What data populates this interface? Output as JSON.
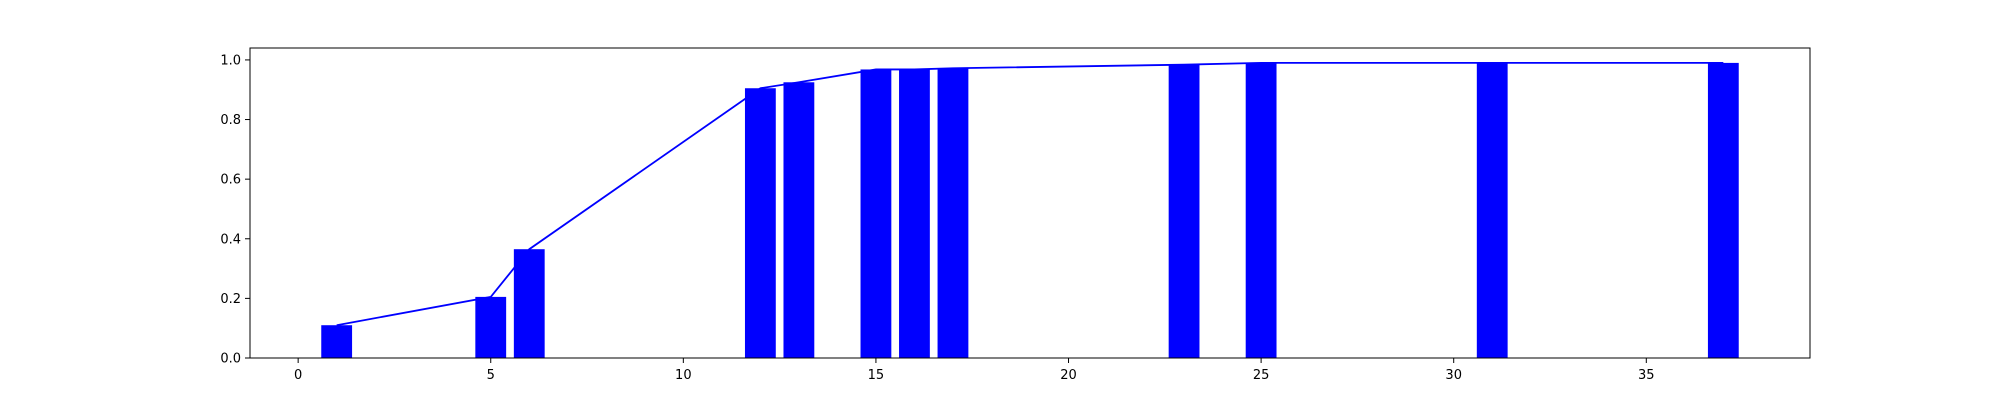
{
  "chart_data": {
    "type": "bar",
    "title": "",
    "xlabel": "",
    "ylabel": "",
    "xlim": [
      -1.25,
      39.25
    ],
    "ylim": [
      0,
      1.04
    ],
    "xticks": [
      0,
      5,
      10,
      15,
      20,
      25,
      30,
      35
    ],
    "yticks": [
      0.0,
      0.2,
      0.4,
      0.6,
      0.8,
      1.0
    ],
    "xtick_labels": [
      "0",
      "5",
      "10",
      "15",
      "20",
      "25",
      "30",
      "35"
    ],
    "ytick_labels": [
      "0.0",
      "0.2",
      "0.4",
      "0.6",
      "0.8",
      "1.0"
    ],
    "grid": false,
    "bar_color": "#0000ff",
    "line_color": "#0000ff",
    "bar_width": 0.8,
    "series": [
      {
        "type": "bar",
        "x": [
          1,
          5,
          6,
          12,
          13,
          15,
          16,
          17,
          23,
          25,
          31,
          37
        ],
        "values": [
          0.11,
          0.205,
          0.365,
          0.905,
          0.925,
          0.968,
          0.968,
          0.972,
          0.984,
          0.99,
          0.99,
          0.99
        ]
      },
      {
        "type": "line",
        "x": [
          1,
          5,
          6,
          12,
          13,
          15,
          16,
          17,
          23,
          25,
          31,
          37
        ],
        "values": [
          0.11,
          0.205,
          0.365,
          0.905,
          0.925,
          0.968,
          0.968,
          0.972,
          0.984,
          0.99,
          0.99,
          0.99
        ]
      }
    ]
  }
}
